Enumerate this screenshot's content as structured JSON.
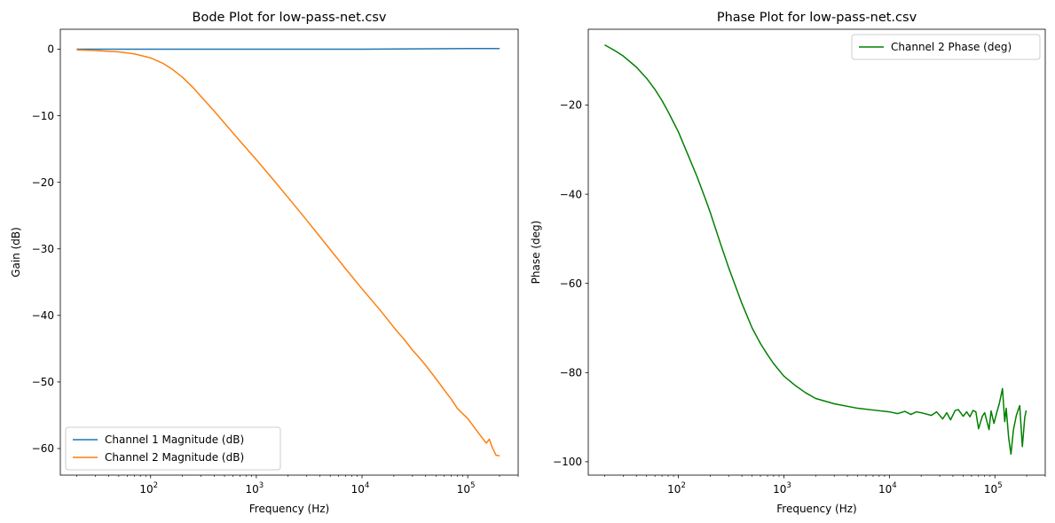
{
  "chart_data": [
    {
      "type": "line",
      "title": "Bode Plot for low-pass-net.csv",
      "xlabel": "Frequency (Hz)",
      "ylabel": "Gain (dB)",
      "xscale": "log",
      "xlim": [
        14,
        300000
      ],
      "ylim": [
        -64,
        3
      ],
      "xticks": [
        {
          "v": 100,
          "m": "10",
          "e": "2"
        },
        {
          "v": 1000,
          "m": "10",
          "e": "3"
        },
        {
          "v": 10000,
          "m": "10",
          "e": "4"
        },
        {
          "v": 100000,
          "m": "10",
          "e": "5"
        }
      ],
      "yticks": [
        0,
        -10,
        -20,
        -30,
        -40,
        -50,
        -60
      ],
      "legend": "lower-left",
      "series": [
        {
          "name": "Channel 1 Magnitude (dB)",
          "color": "#1f77b4",
          "points": [
            [
              20,
              0
            ],
            [
              100,
              0
            ],
            [
              1000,
              0
            ],
            [
              10000,
              0
            ],
            [
              100000,
              0.1
            ],
            [
              200000,
              0.1
            ]
          ]
        },
        {
          "name": "Channel 2 Magnitude (dB)",
          "color": "#ff7f0e",
          "points": [
            [
              20,
              -0.1
            ],
            [
              30,
              -0.2
            ],
            [
              50,
              -0.4
            ],
            [
              70,
              -0.7
            ],
            [
              100,
              -1.3
            ],
            [
              130,
              -2.1
            ],
            [
              160,
              -3.0
            ],
            [
              200,
              -4.2
            ],
            [
              250,
              -5.7
            ],
            [
              300,
              -7.1
            ],
            [
              400,
              -9.3
            ],
            [
              500,
              -11.1
            ],
            [
              700,
              -13.8
            ],
            [
              1000,
              -16.6
            ],
            [
              1500,
              -19.9
            ],
            [
              2000,
              -22.3
            ],
            [
              3000,
              -25.7
            ],
            [
              5000,
              -30.1
            ],
            [
              7000,
              -33.0
            ],
            [
              10000,
              -36.0
            ],
            [
              15000,
              -39.3
            ],
            [
              20000,
              -41.8
            ],
            [
              25000,
              -43.6
            ],
            [
              30000,
              -45.2
            ],
            [
              35000,
              -46.4
            ],
            [
              40000,
              -47.5
            ],
            [
              50000,
              -49.5
            ],
            [
              60000,
              -51.2
            ],
            [
              70000,
              -52.6
            ],
            [
              80000,
              -54.0
            ],
            [
              100000,
              -55.5
            ],
            [
              120000,
              -57.2
            ],
            [
              140000,
              -58.6
            ],
            [
              150000,
              -59.2
            ],
            [
              160000,
              -58.6
            ],
            [
              170000,
              -59.8
            ],
            [
              185000,
              -61.0
            ],
            [
              200000,
              -61.1
            ]
          ]
        }
      ]
    },
    {
      "type": "line",
      "title": "Phase Plot for low-pass-net.csv",
      "xlabel": "Frequency (Hz)",
      "ylabel": "Phase (deg)",
      "xscale": "log",
      "xlim": [
        14,
        300000
      ],
      "ylim": [
        -103,
        -3
      ],
      "xticks": [
        {
          "v": 100,
          "m": "10",
          "e": "2"
        },
        {
          "v": 1000,
          "m": "10",
          "e": "3"
        },
        {
          "v": 10000,
          "m": "10",
          "e": "4"
        },
        {
          "v": 100000,
          "m": "10",
          "e": "5"
        }
      ],
      "yticks": [
        -20,
        -40,
        -60,
        -80,
        -100
      ],
      "legend": "top-right",
      "series": [
        {
          "name": "Channel 2 Phase (deg)",
          "color": "#008000",
          "points": [
            [
              20,
              -6.5
            ],
            [
              25,
              -7.8
            ],
            [
              30,
              -9.0
            ],
            [
              40,
              -11.5
            ],
            [
              50,
              -14.0
            ],
            [
              60,
              -16.5
            ],
            [
              70,
              -19.0
            ],
            [
              80,
              -21.5
            ],
            [
              100,
              -26.0
            ],
            [
              120,
              -30.5
            ],
            [
              150,
              -36.0
            ],
            [
              180,
              -41.0
            ],
            [
              200,
              -44.0
            ],
            [
              250,
              -51.0
            ],
            [
              300,
              -56.5
            ],
            [
              400,
              -64.5
            ],
            [
              500,
              -70.0
            ],
            [
              600,
              -73.5
            ],
            [
              700,
              -76.0
            ],
            [
              800,
              -78.0
            ],
            [
              1000,
              -80.8
            ],
            [
              1300,
              -83.0
            ],
            [
              1600,
              -84.5
            ],
            [
              2000,
              -85.8
            ],
            [
              3000,
              -87.0
            ],
            [
              5000,
              -88.0
            ],
            [
              7000,
              -88.4
            ],
            [
              10000,
              -88.8
            ],
            [
              12000,
              -89.2
            ],
            [
              14000,
              -88.7
            ],
            [
              16000,
              -89.4
            ],
            [
              18000,
              -88.8
            ],
            [
              20000,
              -89.0
            ],
            [
              25000,
              -89.6
            ],
            [
              28000,
              -88.8
            ],
            [
              32000,
              -90.4
            ],
            [
              35000,
              -89.0
            ],
            [
              38000,
              -90.6
            ],
            [
              42000,
              -88.5
            ],
            [
              45000,
              -88.3
            ],
            [
              50000,
              -89.8
            ],
            [
              54000,
              -88.8
            ],
            [
              58000,
              -89.9
            ],
            [
              62000,
              -88.5
            ],
            [
              66000,
              -88.8
            ],
            [
              70000,
              -92.6
            ],
            [
              76000,
              -89.8
            ],
            [
              80000,
              -89.0
            ],
            [
              88000,
              -92.8
            ],
            [
              92000,
              -88.6
            ],
            [
              98000,
              -91.4
            ],
            [
              104000,
              -89.0
            ],
            [
              110000,
              -87.0
            ],
            [
              118000,
              -83.6
            ],
            [
              124000,
              -91.0
            ],
            [
              128000,
              -88.0
            ],
            [
              135000,
              -94.6
            ],
            [
              142000,
              -98.3
            ],
            [
              150000,
              -92.8
            ],
            [
              160000,
              -89.5
            ],
            [
              172000,
              -87.4
            ],
            [
              182000,
              -96.6
            ],
            [
              192000,
              -90.0
            ],
            [
              198000,
              -88.5
            ]
          ]
        }
      ]
    }
  ]
}
